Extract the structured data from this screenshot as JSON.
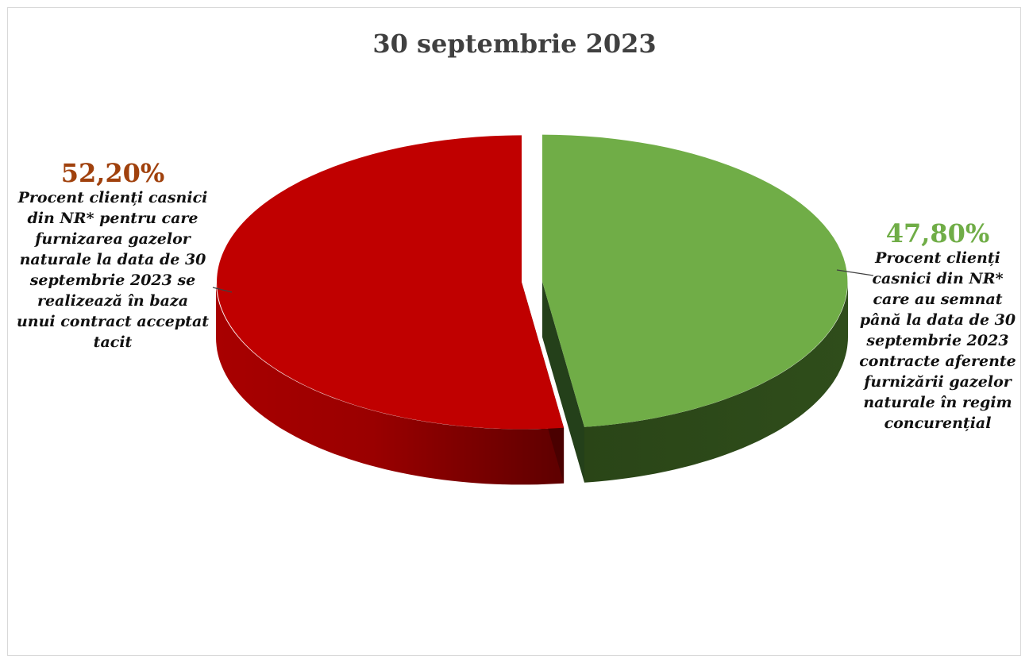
{
  "chart_data": {
    "type": "pie",
    "title": "30 septembrie 2023",
    "slices": [
      {
        "value": 52.2,
        "value_label": "52,20%",
        "label": "Procent clienți casnici\ndin NR* pentru care\nfurnizarea gazelor\nnaturale la data de 30\nseptembrie 2023 se\nrealizează în baza\nunui contract acceptat\ntacit",
        "color": "#c00000",
        "label_color": "#a0410d"
      },
      {
        "value": 47.8,
        "value_label": "47,80%",
        "label": "Procent clienți\ncasnici din NR*\ncare au semnat\npână la data de 30\nseptembrie 2023\ncontracte aferente\nfurnizării gazelor\nnaturale în regim\nconcurențial",
        "color": "#70ad47",
        "label_color": "#70ad47"
      }
    ],
    "style": "3d-exploded"
  }
}
